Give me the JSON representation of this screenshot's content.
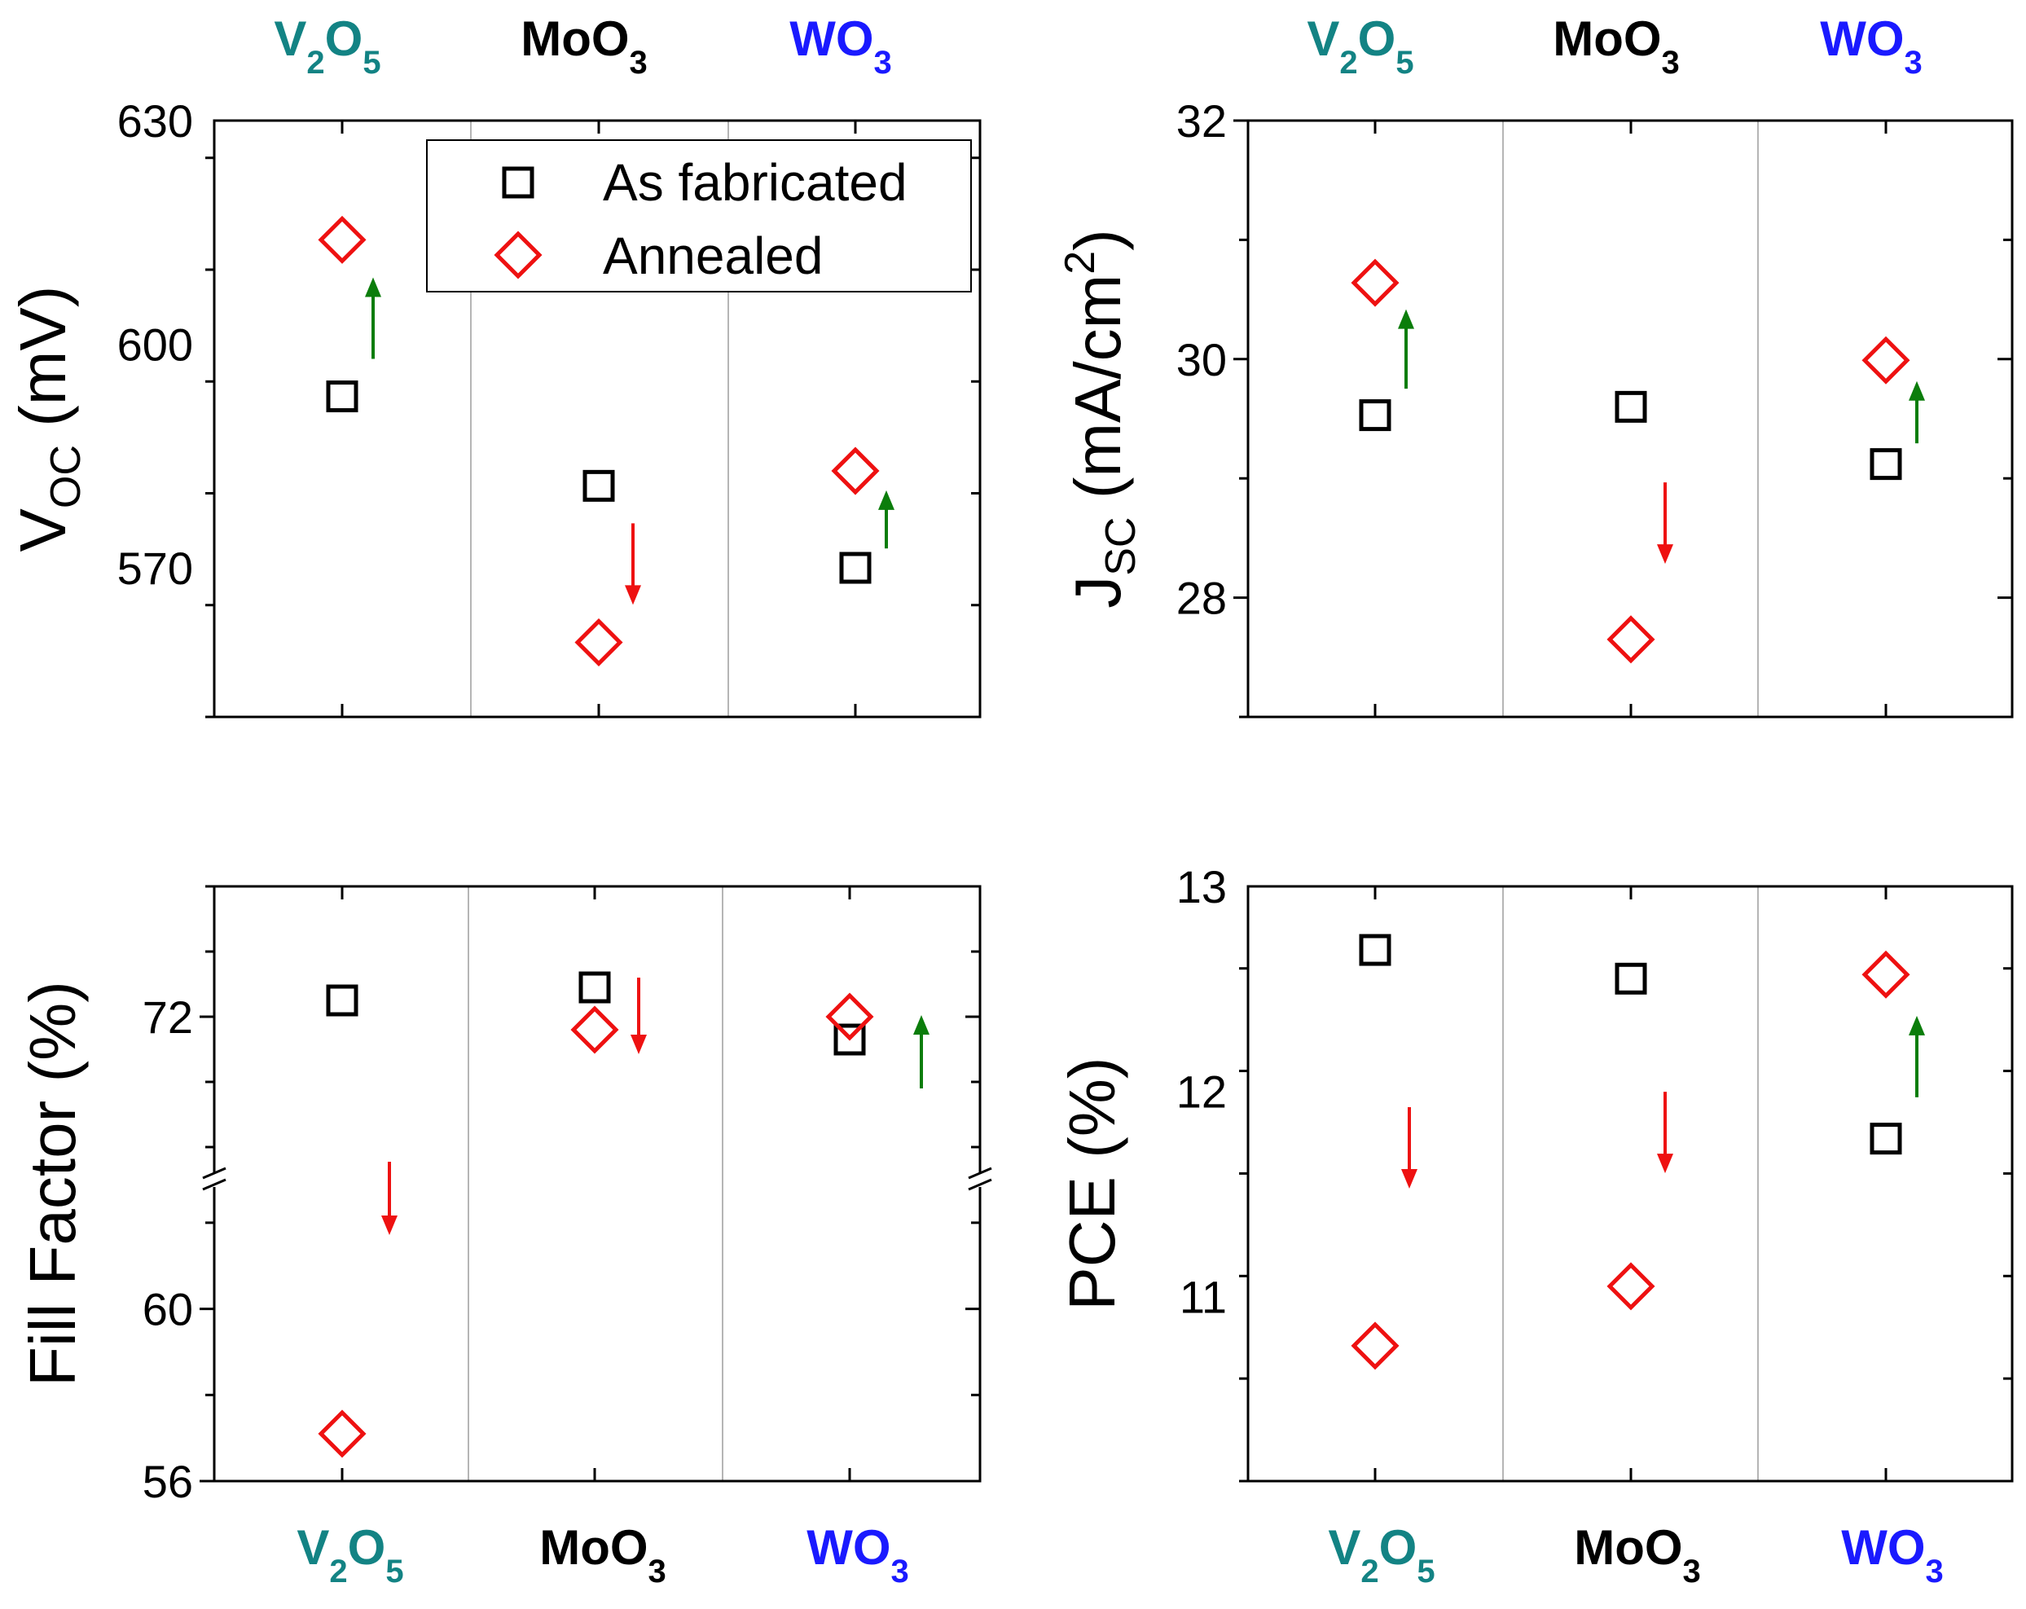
{
  "category_colors": {
    "V2O5": "#138384",
    "MoO3": "#000000",
    "WO3": "#1a1aff"
  },
  "arrow_colors": {
    "up": "#0b7d0b",
    "down": "#ee1111"
  },
  "legend": {
    "as_fabricated": "As fabricated",
    "annealed": "Annealed"
  },
  "chart_data": [
    {
      "id": "voc",
      "type": "scatter",
      "categories": [
        "V2O5",
        "MoO3",
        "WO3"
      ],
      "ylabel": "V_OC (mV)",
      "ylim": [
        550,
        630
      ],
      "yticks": [
        570,
        600,
        630
      ],
      "minor_step": 15,
      "grid": "vertical separators between categories",
      "legend_position": "top-right",
      "series": [
        {
          "name": "As fabricated",
          "marker": "square",
          "values": [
            593,
            581,
            570
          ]
        },
        {
          "name": "Annealed",
          "marker": "diamond",
          "values": [
            614,
            560,
            583
          ]
        }
      ],
      "trend": [
        "up",
        "down",
        "up"
      ]
    },
    {
      "id": "jsc",
      "type": "scatter",
      "categories": [
        "V2O5",
        "MoO3",
        "WO3"
      ],
      "ylabel": "J_SC (mA/cm^2)",
      "ylim": [
        27,
        32
      ],
      "yticks": [
        28,
        30,
        32
      ],
      "minor_step": 1,
      "grid": "vertical separators between categories",
      "series": [
        {
          "name": "As fabricated",
          "marker": "square",
          "values": [
            29.53,
            29.6,
            29.12
          ]
        },
        {
          "name": "Annealed",
          "marker": "diamond",
          "values": [
            30.64,
            27.65,
            29.99
          ]
        }
      ],
      "trend": [
        "up",
        "down",
        "up"
      ]
    },
    {
      "id": "ff",
      "type": "scatter",
      "categories": [
        "V2O5",
        "MoO3",
        "WO3"
      ],
      "ylabel": "Fill Factor (%)",
      "axis_break": true,
      "upper_ylim": [
        67,
        76
      ],
      "lower_ylim": [
        56,
        63
      ],
      "yticks": [
        56,
        60,
        72
      ],
      "grid": "vertical separators between categories",
      "series": [
        {
          "name": "As fabricated",
          "marker": "square",
          "values": [
            72.5,
            72.9,
            71.3
          ]
        },
        {
          "name": "Annealed",
          "marker": "diamond",
          "values": [
            57.1,
            71.6,
            72.0
          ]
        }
      ],
      "trend": [
        "down",
        "down",
        "up"
      ]
    },
    {
      "id": "pce",
      "type": "scatter",
      "categories": [
        "V2O5",
        "MoO3",
        "WO3"
      ],
      "ylabel": "PCE (%)",
      "ylim": [
        10.1,
        13
      ],
      "yticks": [
        11,
        12,
        13
      ],
      "minor_step": 0.5,
      "grid": "vertical separators between categories",
      "series": [
        {
          "name": "As fabricated",
          "marker": "square",
          "values": [
            12.69,
            12.55,
            11.77
          ]
        },
        {
          "name": "Annealed",
          "marker": "diamond",
          "values": [
            10.76,
            11.05,
            12.57
          ]
        }
      ],
      "trend": [
        "down",
        "down",
        "up"
      ]
    }
  ]
}
